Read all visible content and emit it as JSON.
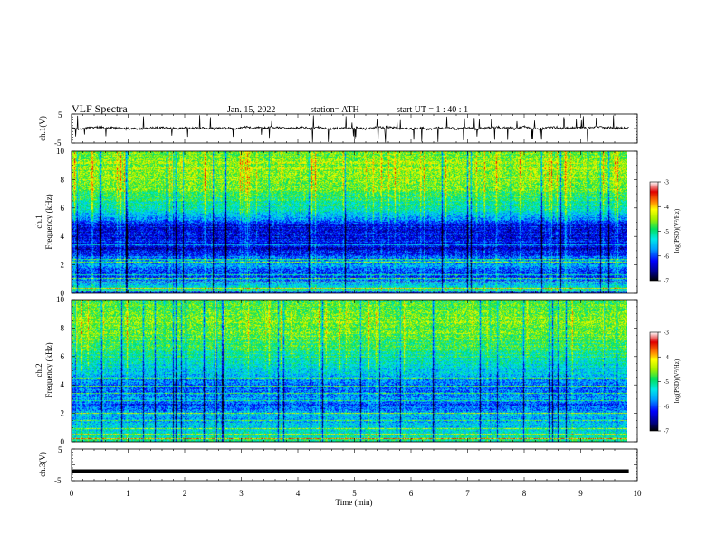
{
  "header": {
    "title": "VLF  Spectra",
    "date": "Jan. 15, 2022",
    "station": "station= ATH",
    "start_ut": "start  UT  =   1  : 40 : 1"
  },
  "chart_data": [
    {
      "type": "line",
      "name": "ch1-waveform",
      "ylabel": "ch.1(V)",
      "ylim": [
        -5,
        5
      ],
      "ytick_labels": [
        "5",
        "-5"
      ],
      "x_range_min": [
        0,
        9.85
      ],
      "baseline_v": 0.2,
      "noise_amplitude_v": 0.7,
      "spike_count": 55
    },
    {
      "type": "heatmap",
      "name": "ch1-spectrogram",
      "ylabel": "ch.1\nFrequency (kHz)",
      "ylim": [
        0,
        10
      ],
      "ytick_labels": [
        "0",
        "2",
        "4",
        "6",
        "8",
        "10"
      ],
      "x_range_min": [
        0,
        9.85
      ],
      "zlabel": "log(PSD)(V²/Hz)",
      "zlim": [
        -7,
        -3
      ],
      "ztick_labels": [
        "-3",
        "-4",
        "-5",
        "-6",
        "-7"
      ],
      "mean_log_psd_profile": {
        "freq_khz": [
          0.0,
          0.2,
          0.6,
          1.0,
          1.5,
          2.0,
          2.5,
          3.0,
          3.5,
          4.0,
          4.5,
          4.9,
          5.2,
          5.6,
          6.0,
          6.6,
          7.2,
          7.8,
          8.4,
          9.0,
          9.5,
          10.0
        ],
        "log_psd": [
          -6.2,
          -5.0,
          -5.4,
          -5.9,
          -6.1,
          -5.6,
          -5.9,
          -6.4,
          -6.2,
          -6.3,
          -6.3,
          -6.2,
          -5.7,
          -5.4,
          -5.2,
          -5.0,
          -4.7,
          -4.6,
          -4.5,
          -4.5,
          -4.6,
          -4.7
        ]
      }
    },
    {
      "type": "heatmap",
      "name": "ch2-spectrogram",
      "ylabel": "ch.2\nFrequency (kHz)",
      "ylim": [
        0,
        10
      ],
      "ytick_labels": [
        "0",
        "2",
        "4",
        "6",
        "8",
        "10"
      ],
      "x_range_min": [
        0,
        9.85
      ],
      "zlabel": "log(PSD)(V²/Hz)",
      "zlim": [
        -7,
        -3
      ],
      "ztick_labels": [
        "-3",
        "-4",
        "-5",
        "-6",
        "-7"
      ],
      "mean_log_psd_profile": {
        "freq_khz": [
          0.0,
          0.2,
          0.6,
          1.0,
          1.5,
          2.0,
          2.6,
          3.0,
          3.5,
          4.0,
          4.5,
          5.0,
          5.5,
          6.0,
          6.6,
          7.2,
          7.8,
          8.4,
          9.0,
          9.5,
          10.0
        ],
        "log_psd": [
          -5.2,
          -5.0,
          -5.3,
          -5.4,
          -5.6,
          -5.6,
          -6.0,
          -5.7,
          -5.8,
          -5.8,
          -5.6,
          -5.4,
          -5.3,
          -5.1,
          -4.9,
          -4.8,
          -4.7,
          -4.6,
          -4.6,
          -4.7,
          -4.8
        ]
      }
    },
    {
      "type": "line",
      "name": "ch3-waveform",
      "ylabel": "ch.3(V)",
      "ylim": [
        -5,
        5
      ],
      "ytick_labels": [
        "5",
        "-5"
      ],
      "x_range_min": [
        0,
        9.85
      ],
      "baseline_v": -2.0
    }
  ],
  "xaxis": {
    "label": "Time  (min)",
    "ticks": [
      0,
      1,
      2,
      3,
      4,
      5,
      6,
      7,
      8,
      9,
      10
    ],
    "tick_labels": [
      "0",
      "1",
      "2",
      "3",
      "4",
      "5",
      "6",
      "7",
      "8",
      "9",
      "10"
    ],
    "xlim": [
      0,
      10
    ]
  },
  "colormap": [
    "#000080",
    "#0000ff",
    "#00a0ff",
    "#00e8e8",
    "#00e060",
    "#a0f000",
    "#ffff00",
    "#ff8000",
    "#e00000",
    "#ffffff"
  ]
}
